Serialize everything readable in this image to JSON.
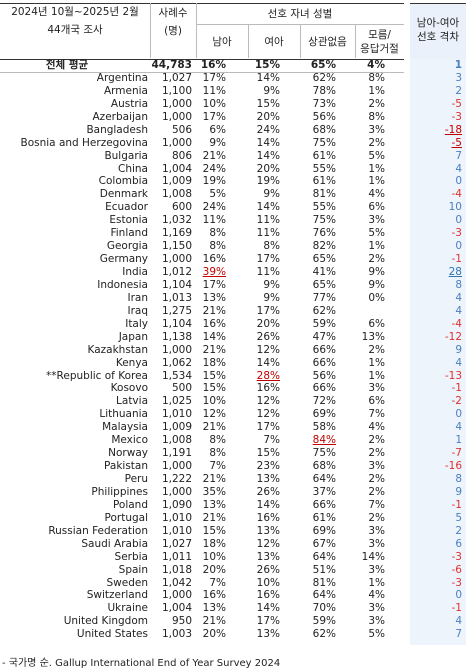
{
  "header": {
    "period": "2024년 10월~2025년 2월",
    "scope": "44개국 조사",
    "n_label": "사례수",
    "n_unit": "(명)",
    "group": "선호 자녀 성별",
    "boy": "남아",
    "girl": "여아",
    "no_matter": "상관없음",
    "dk": "모름/\n응답거절",
    "gap": "남아-여아\n선호 격차"
  },
  "table": {
    "rows": [
      [
        "전체 평균",
        "44,783",
        "16%",
        "15%",
        "65%",
        "4%",
        "1"
      ],
      [
        "Argentina",
        "1,027",
        "17%",
        "14%",
        "62%",
        "8%",
        "3"
      ],
      [
        "Armenia",
        "1,100",
        "11%",
        "9%",
        "78%",
        "1%",
        "2"
      ],
      [
        "Austria",
        "1,000",
        "10%",
        "15%",
        "73%",
        "2%",
        "-5"
      ],
      [
        "Azerbaijan",
        "1,000",
        "17%",
        "20%",
        "56%",
        "8%",
        "-3"
      ],
      [
        "Bangladesh",
        "506",
        "6%",
        "24%",
        "68%",
        "3%",
        "-18"
      ],
      [
        "Bosnia and Herzegovina",
        "1,000",
        "9%",
        "14%",
        "75%",
        "2%",
        "-5"
      ],
      [
        "Bulgaria",
        "806",
        "21%",
        "14%",
        "61%",
        "5%",
        "7"
      ],
      [
        "China",
        "1,004",
        "24%",
        "20%",
        "55%",
        "1%",
        "4"
      ],
      [
        "Colombia",
        "1,009",
        "19%",
        "19%",
        "61%",
        "1%",
        "0"
      ],
      [
        "Denmark",
        "1,008",
        "5%",
        "9%",
        "81%",
        "4%",
        "-4"
      ],
      [
        "Ecuador",
        "600",
        "24%",
        "14%",
        "55%",
        "6%",
        "10"
      ],
      [
        "Estonia",
        "1,032",
        "11%",
        "11%",
        "75%",
        "3%",
        "0"
      ],
      [
        "Finland",
        "1,169",
        "8%",
        "11%",
        "76%",
        "5%",
        "-3"
      ],
      [
        "Georgia",
        "1,150",
        "8%",
        "8%",
        "82%",
        "1%",
        "0"
      ],
      [
        "Germany",
        "1,000",
        "16%",
        "17%",
        "65%",
        "2%",
        "-1"
      ],
      [
        "India",
        "1,012",
        "39%",
        "11%",
        "41%",
        "9%",
        "28"
      ],
      [
        "Indonesia",
        "1,104",
        "17%",
        "9%",
        "65%",
        "9%",
        "8"
      ],
      [
        "Iran",
        "1,013",
        "13%",
        "9%",
        "77%",
        "0%",
        "4"
      ],
      [
        "Iraq",
        "1,275",
        "21%",
        "17%",
        "62%",
        null,
        "4"
      ],
      [
        "Italy",
        "1,104",
        "16%",
        "20%",
        "59%",
        "6%",
        "-4"
      ],
      [
        "Japan",
        "1,138",
        "14%",
        "26%",
        "47%",
        "13%",
        "-12"
      ],
      [
        "Kazakhstan",
        "1,000",
        "21%",
        "12%",
        "66%",
        "2%",
        "9"
      ],
      [
        "Kenya",
        "1,062",
        "18%",
        "14%",
        "66%",
        "1%",
        "4"
      ],
      [
        "**Republic of Korea",
        "1,534",
        "15%",
        "28%",
        "56%",
        "1%",
        "-13"
      ],
      [
        "Kosovo",
        "500",
        "15%",
        "16%",
        "66%",
        "3%",
        "-1"
      ],
      [
        "Latvia",
        "1,025",
        "10%",
        "12%",
        "72%",
        "6%",
        "-2"
      ],
      [
        "Lithuania",
        "1,010",
        "12%",
        "12%",
        "69%",
        "7%",
        "0"
      ],
      [
        "Malaysia",
        "1,009",
        "21%",
        "17%",
        "58%",
        "4%",
        "4"
      ],
      [
        "Mexico",
        "1,008",
        "8%",
        "7%",
        "84%",
        "2%",
        "1"
      ],
      [
        "Norway",
        "1,191",
        "8%",
        "15%",
        "75%",
        "2%",
        "-7"
      ],
      [
        "Pakistan",
        "1,000",
        "7%",
        "23%",
        "68%",
        "3%",
        "-16"
      ],
      [
        "Peru",
        "1,222",
        "21%",
        "13%",
        "64%",
        "2%",
        "8"
      ],
      [
        "Philippines",
        "1,000",
        "35%",
        "26%",
        "37%",
        "2%",
        "9"
      ],
      [
        "Poland",
        "1,090",
        "13%",
        "14%",
        "66%",
        "7%",
        "-1"
      ],
      [
        "Portugal",
        "1,010",
        "21%",
        "16%",
        "61%",
        "2%",
        "5"
      ],
      [
        "Russian Federation",
        "1,010",
        "15%",
        "13%",
        "69%",
        "3%",
        "2"
      ],
      [
        "Saudi Arabia",
        "1,027",
        "18%",
        "12%",
        "67%",
        "3%",
        "6"
      ],
      [
        "Serbia",
        "1,011",
        "10%",
        "13%",
        "64%",
        "14%",
        "-3"
      ],
      [
        "Spain",
        "1,018",
        "20%",
        "26%",
        "51%",
        "3%",
        "-6"
      ],
      [
        "Sweden",
        "1,042",
        "7%",
        "10%",
        "81%",
        "1%",
        "-3"
      ],
      [
        "Switzerland",
        "1,000",
        "16%",
        "16%",
        "64%",
        "4%",
        "0"
      ],
      [
        "Ukraine",
        "1,004",
        "13%",
        "14%",
        "70%",
        "3%",
        "-1"
      ],
      [
        "United Kingdom",
        "950",
        "21%",
        "17%",
        "59%",
        "3%",
        "4"
      ],
      [
        "United States",
        "1,003",
        "20%",
        "13%",
        "62%",
        "5%",
        "7"
      ]
    ]
  },
  "footnote": "- 국가명 순. Gallup International End of Year Survey 2024"
}
